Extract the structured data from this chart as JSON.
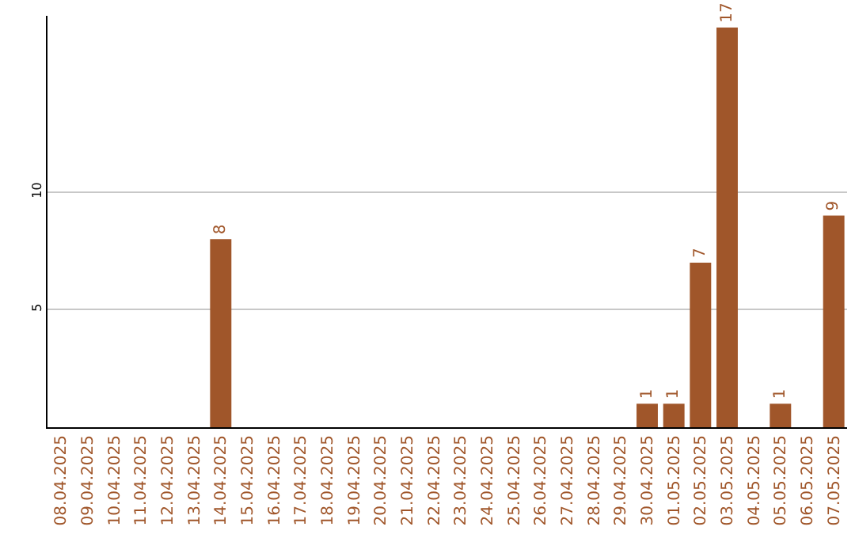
{
  "chart_data": {
    "type": "bar",
    "categories": [
      "08.04.2025",
      "09.04.2025",
      "10.04.2025",
      "11.04.2025",
      "12.04.2025",
      "13.04.2025",
      "14.04.2025",
      "15.04.2025",
      "16.04.2025",
      "17.04.2025",
      "18.04.2025",
      "19.04.2025",
      "20.04.2025",
      "21.04.2025",
      "22.04.2025",
      "23.04.2025",
      "24.04.2025",
      "25.04.2025",
      "26.04.2025",
      "27.04.2025",
      "28.04.2025",
      "29.04.2025",
      "30.04.2025",
      "01.05.2025",
      "02.05.2025",
      "03.05.2025",
      "04.05.2025",
      "05.05.2025",
      "06.05.2025",
      "07.05.2025"
    ],
    "values": [
      0,
      0,
      0,
      0,
      0,
      0,
      8,
      0,
      0,
      0,
      0,
      0,
      0,
      0,
      0,
      0,
      0,
      0,
      0,
      0,
      0,
      0,
      1,
      1,
      7,
      17,
      0,
      1,
      0,
      9
    ],
    "value_labels": [
      null,
      null,
      null,
      null,
      null,
      null,
      "8",
      null,
      null,
      null,
      null,
      null,
      null,
      null,
      null,
      null,
      null,
      null,
      null,
      null,
      null,
      null,
      "1",
      "1",
      "7",
      "17",
      null,
      "1",
      null,
      "9"
    ],
    "color": "#a0562a",
    "ylim": [
      0,
      17.5
    ],
    "yticks": [
      5,
      10
    ],
    "grid": "y",
    "legend": false
  }
}
